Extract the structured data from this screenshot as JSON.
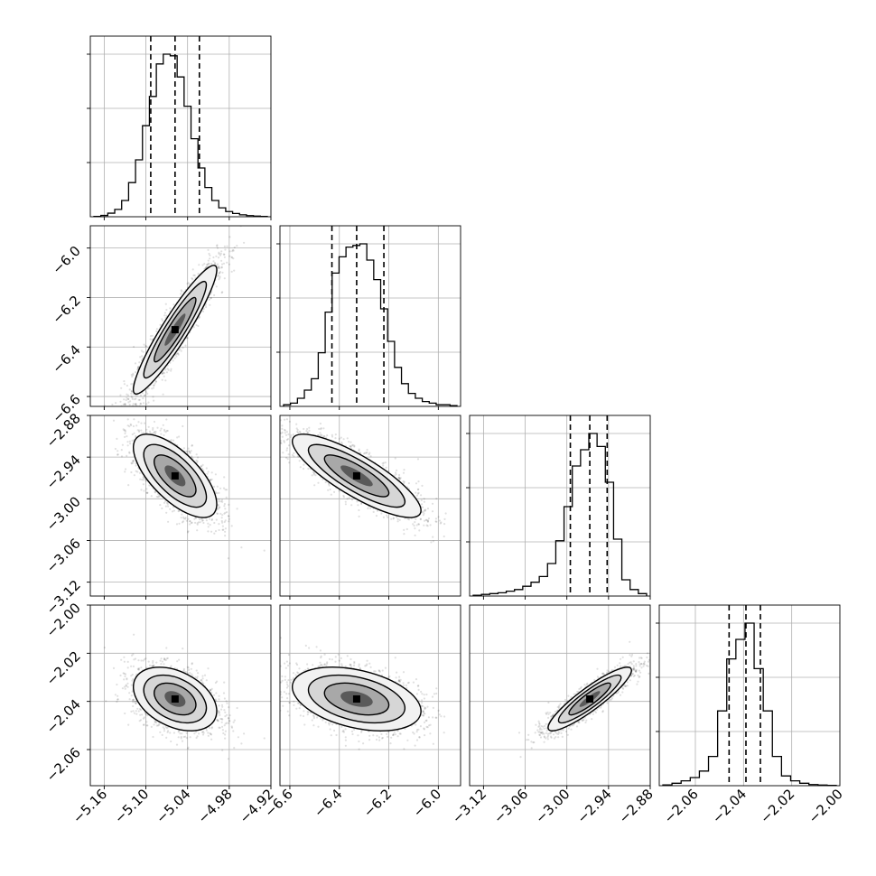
{
  "chart_data": {
    "type": "corner",
    "grid": true,
    "parameters": [
      {
        "range": [
          -5.18,
          -4.92
        ],
        "ticks": [
          -5.16,
          -5.1,
          -5.04,
          -4.98,
          -4.92
        ],
        "tick_labels": [
          "−5.16",
          "−5.10",
          "−5.04",
          "−4.98",
          "−4.92"
        ],
        "quantiles": [
          -5.093,
          -5.058,
          -5.023
        ],
        "hist_counts": [
          0.2,
          0.8,
          2.2,
          4.5,
          10,
          21,
          35,
          56,
          74,
          94,
          100,
          99,
          86,
          68,
          48,
          30,
          18,
          10,
          5.5,
          3.2,
          2,
          1.2,
          0.7,
          0.4,
          0.2
        ]
      },
      {
        "range": [
          -6.64,
          -5.91
        ],
        "ticks": [
          -6.6,
          -6.4,
          -6.2,
          -6.0
        ],
        "tick_labels": [
          "−6.6",
          "−6.4",
          "−6.2",
          "−6.0"
        ],
        "quantiles": [
          -6.43,
          -6.33,
          -6.22
        ],
        "hist_counts": [
          1,
          2,
          5,
          10,
          17,
          33,
          58,
          82,
          92,
          98,
          99,
          100,
          90,
          78,
          60,
          40,
          24,
          14,
          8,
          5,
          3,
          2,
          1,
          1,
          0.5
        ]
      },
      {
        "range": [
          -3.14,
          -2.88
        ],
        "ticks": [
          -3.12,
          -3.06,
          -3.0,
          -2.94,
          -2.88
        ],
        "tick_labels": [
          "−3.12",
          "−3.06",
          "−3.00",
          "−2.94",
          "−2.88"
        ],
        "quantiles": [
          -2.995,
          -2.967,
          -2.942
        ],
        "hist_counts": [
          0.5,
          1,
          1.5,
          2,
          3,
          4,
          6,
          8.5,
          12,
          20,
          34,
          55,
          80,
          90,
          100,
          92,
          70,
          35,
          10,
          4,
          1.5
        ]
      },
      {
        "range": [
          -2.075,
          -2.0
        ],
        "ticks": [
          -2.06,
          -2.04,
          -2.02,
          -2.0
        ],
        "tick_labels": [
          "−2.06",
          "−2.04",
          "−2.02",
          "−2.00"
        ],
        "quantiles": [
          -2.046,
          -2.039,
          -2.033
        ],
        "hist_counts": [
          0.5,
          1.5,
          3,
          5,
          9,
          18,
          46,
          78,
          90,
          100,
          72,
          46,
          18,
          6,
          3,
          1.5,
          0.7,
          0.4,
          0.2
        ]
      }
    ],
    "pairs": [
      {
        "x": 0,
        "y": 1,
        "means": [
          -5.058,
          -6.33
        ],
        "sd": [
          0.03,
          0.13
        ],
        "corr": 0.93
      },
      {
        "x": 0,
        "y": 2,
        "means": [
          -5.058,
          -2.967
        ],
        "sd": [
          0.03,
          0.03
        ],
        "corr": -0.68
      },
      {
        "x": 1,
        "y": 2,
        "means": [
          -6.33,
          -2.967
        ],
        "sd": [
          0.13,
          0.03
        ],
        "corr": -0.83
      },
      {
        "x": 0,
        "y": 3,
        "means": [
          -5.058,
          -2.039
        ],
        "sd": [
          0.03,
          0.0066
        ],
        "corr": -0.38
      },
      {
        "x": 1,
        "y": 3,
        "means": [
          -6.33,
          -2.039
        ],
        "sd": [
          0.13,
          0.0066
        ],
        "corr": -0.38
      },
      {
        "x": 2,
        "y": 3,
        "means": [
          -2.967,
          -2.039
        ],
        "sd": [
          0.03,
          0.0066
        ],
        "corr": 0.9
      }
    ]
  }
}
